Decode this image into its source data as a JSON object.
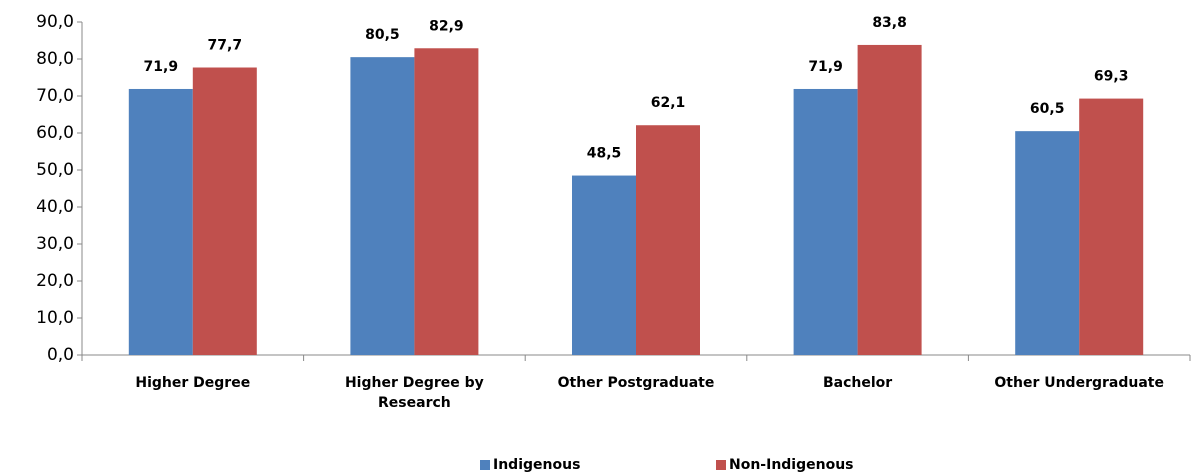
{
  "chart_data": {
    "type": "bar",
    "categories": [
      "Higher Degree",
      "Higher Degree by Research",
      "Other Postgraduate",
      "Bachelor",
      "Other Undergraduate"
    ],
    "series": [
      {
        "name": "Indigenous",
        "color": "#4f81bd",
        "values": [
          71.9,
          80.5,
          48.5,
          71.9,
          60.5
        ],
        "value_labels": [
          "71,9",
          "80,5",
          "48,5",
          "71,9",
          "60,5"
        ]
      },
      {
        "name": "Non-Indigenous",
        "color": "#c0504d",
        "values": [
          77.7,
          82.9,
          62.1,
          83.8,
          69.3
        ],
        "value_labels": [
          "77,7",
          "82,9",
          "62,1",
          "83,8",
          "69,3"
        ]
      }
    ],
    "ylim": [
      0,
      90
    ],
    "yticks": [
      {
        "value": 0,
        "label": "0,0"
      },
      {
        "value": 10,
        "label": "10,0"
      },
      {
        "value": 20,
        "label": "20,0"
      },
      {
        "value": 30,
        "label": "30,0"
      },
      {
        "value": 40,
        "label": "40,0"
      },
      {
        "value": 50,
        "label": "50,0"
      },
      {
        "value": 60,
        "label": "60,0"
      },
      {
        "value": 70,
        "label": "70,0"
      },
      {
        "value": 80,
        "label": "80,0"
      },
      {
        "value": 90,
        "label": "90,0"
      }
    ],
    "grid": false,
    "legend": "bottom"
  }
}
